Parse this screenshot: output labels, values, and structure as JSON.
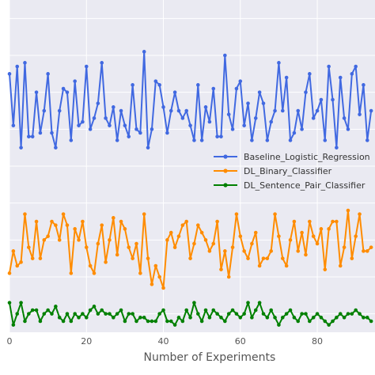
{
  "chart_data": {
    "type": "line",
    "xlabel": "Number of Experiments",
    "ylabel": "",
    "xlim": [
      0,
      95
    ],
    "ylim": [
      0,
      9
    ],
    "x_ticks": [
      "0",
      "20",
      "40",
      "60",
      "80"
    ],
    "grid": true,
    "legend": "center-right",
    "series": [
      {
        "name": "Baseline_Logistic_Regression",
        "color": "#4169e1",
        "values": [
          7.0,
          5.6,
          7.2,
          5.0,
          7.3,
          5.3,
          5.3,
          6.5,
          5.4,
          6.0,
          7.0,
          5.4,
          5.0,
          6.0,
          6.6,
          6.5,
          5.2,
          6.8,
          5.6,
          5.7,
          7.2,
          5.5,
          5.8,
          6.2,
          7.3,
          5.8,
          5.6,
          6.1,
          5.2,
          6.0,
          5.6,
          5.3,
          6.7,
          5.5,
          5.4,
          7.6,
          5.0,
          5.5,
          6.8,
          6.7,
          6.1,
          5.4,
          6.0,
          6.5,
          6.0,
          5.8,
          6.0,
          5.6,
          5.2,
          6.7,
          5.2,
          6.1,
          5.7,
          6.6,
          5.3,
          5.3,
          7.5,
          5.9,
          5.5,
          6.6,
          6.8,
          5.6,
          6.2,
          5.2,
          5.8,
          6.5,
          6.2,
          5.2,
          5.7,
          6.0,
          7.3,
          6.0,
          6.9,
          5.2,
          5.4,
          6.0,
          5.5,
          6.5,
          7.0,
          5.8,
          6.0,
          6.3,
          5.2,
          7.2,
          6.3,
          5.0,
          6.9,
          5.8,
          5.5,
          7.0,
          7.2,
          5.9,
          6.7,
          5.2,
          6.0
        ],
        "show_in_legend": true
      },
      {
        "name": "DL_Binary_Classifier",
        "color": "#ff8c00",
        "values": [
          1.6,
          2.2,
          1.8,
          1.9,
          3.2,
          2.3,
          2.0,
          3.0,
          2.0,
          2.5,
          2.6,
          3.0,
          2.9,
          2.5,
          3.2,
          2.9,
          1.6,
          2.8,
          2.5,
          3.0,
          2.3,
          1.8,
          1.6,
          2.4,
          2.9,
          1.9,
          2.5,
          3.1,
          2.1,
          3.0,
          2.8,
          2.3,
          2.0,
          2.4,
          1.6,
          3.2,
          2.0,
          1.3,
          1.8,
          1.5,
          1.2,
          2.5,
          2.7,
          2.3,
          2.6,
          2.9,
          3.0,
          2.0,
          2.4,
          2.9,
          2.7,
          2.5,
          2.2,
          2.4,
          3.0,
          1.7,
          2.2,
          1.5,
          2.3,
          3.2,
          2.6,
          2.2,
          2.0,
          2.4,
          2.7,
          1.8,
          2.0,
          2.0,
          2.2,
          3.2,
          2.6,
          2.0,
          1.8,
          2.5,
          3.0,
          2.2,
          2.7,
          2.1,
          3.0,
          2.6,
          2.4,
          2.8,
          1.7,
          2.8,
          3.0,
          3.0,
          1.8,
          2.3,
          3.3,
          2.0,
          2.6,
          3.2,
          2.2,
          2.2,
          2.3
        ],
        "show_in_legend": true
      },
      {
        "name": "DL_Sentence_Pair_Classifier",
        "color": "#008000",
        "values": [
          0.8,
          0.2,
          0.5,
          0.8,
          0.3,
          0.5,
          0.6,
          0.6,
          0.3,
          0.5,
          0.6,
          0.5,
          0.7,
          0.4,
          0.3,
          0.5,
          0.3,
          0.5,
          0.4,
          0.5,
          0.4,
          0.6,
          0.7,
          0.5,
          0.6,
          0.5,
          0.5,
          0.4,
          0.5,
          0.6,
          0.3,
          0.5,
          0.5,
          0.3,
          0.4,
          0.4,
          0.3,
          0.3,
          0.3,
          0.5,
          0.6,
          0.3,
          0.3,
          0.2,
          0.4,
          0.3,
          0.6,
          0.4,
          0.8,
          0.5,
          0.3,
          0.6,
          0.4,
          0.6,
          0.5,
          0.4,
          0.3,
          0.5,
          0.6,
          0.5,
          0.4,
          0.5,
          0.8,
          0.4,
          0.6,
          0.8,
          0.5,
          0.4,
          0.6,
          0.4,
          0.2,
          0.4,
          0.5,
          0.6,
          0.4,
          0.3,
          0.5,
          0.5,
          0.3,
          0.4,
          0.5,
          0.4,
          0.3,
          0.2,
          0.3,
          0.4,
          0.5,
          0.4,
          0.5,
          0.5,
          0.6,
          0.5,
          0.4,
          0.4,
          0.3
        ],
        "show_in_legend": true
      }
    ]
  }
}
